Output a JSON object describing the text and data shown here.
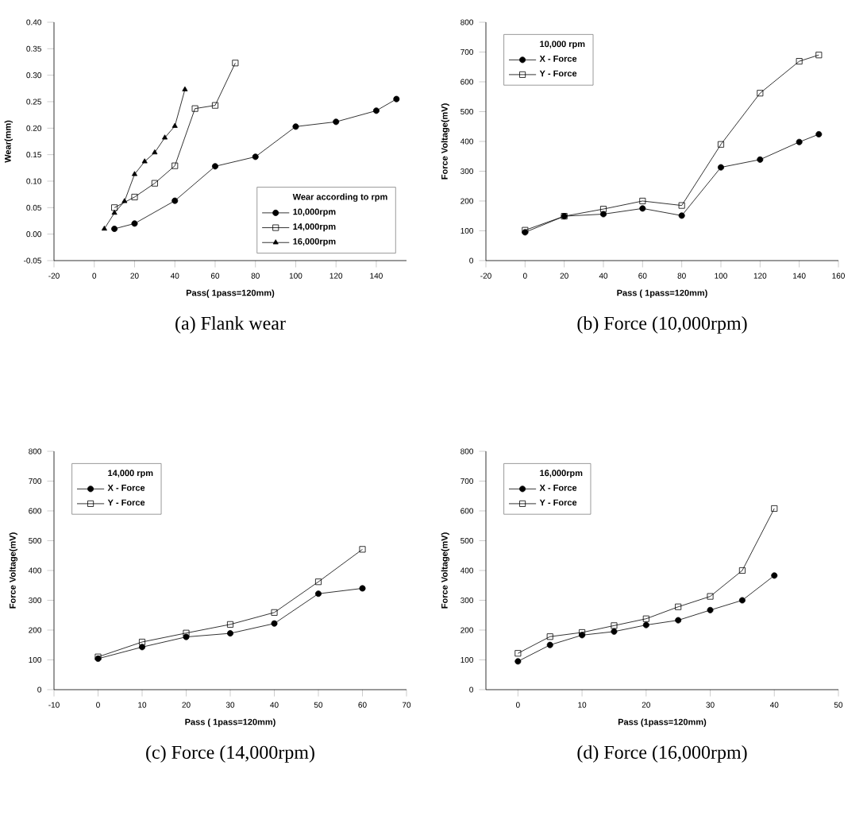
{
  "chart_data": [
    {
      "type": "line",
      "title": "(a) Flank wear",
      "xlabel": "Pass( 1pass=120mm)",
      "ylabel": "Wear(mm)",
      "legend_title": "Wear according to rpm",
      "legend": "bottom right",
      "xlim": [
        -20,
        155
      ],
      "ylim": [
        -0.05,
        0.4
      ],
      "xticks": [
        -20,
        0,
        20,
        40,
        60,
        80,
        100,
        120,
        140
      ],
      "yticks": [
        {
          "value": -0.05,
          "label": "-0.05"
        },
        {
          "value": 0,
          "label": "0.00"
        },
        {
          "value": 0.05,
          "label": "0.05"
        },
        {
          "value": 0.1,
          "label": "0.10"
        },
        {
          "value": 0.15,
          "label": "0.15"
        },
        {
          "value": 0.2,
          "label": "0.20"
        },
        {
          "value": 0.25,
          "label": "0.25"
        },
        {
          "value": 0.3,
          "label": "0.30"
        },
        {
          "value": 0.35,
          "label": "0.35"
        },
        {
          "value": 0.4,
          "label": "0.40"
        }
      ],
      "series": [
        {
          "name": "10,000rpm",
          "color": "#000000",
          "marker": "circle",
          "x": [
            10,
            20,
            40,
            60,
            80,
            100,
            120,
            140,
            150
          ],
          "values": [
            0.01,
            0.02,
            0.063,
            0.128,
            0.146,
            0.203,
            0.212,
            0.233,
            0.255
          ]
        },
        {
          "name": "14,000rpm",
          "color": "#000000",
          "marker": "square",
          "x": [
            10,
            20,
            30,
            40,
            50,
            60,
            70
          ],
          "values": [
            0.05,
            0.07,
            0.096,
            0.129,
            0.237,
            0.243,
            0.323
          ]
        },
        {
          "name": "16,000rpm",
          "color": "#000000",
          "marker": "triangle",
          "x": [
            5,
            10,
            15,
            20,
            25,
            30,
            35,
            40,
            45
          ],
          "values": [
            0.01,
            0.04,
            0.062,
            0.113,
            0.137,
            0.154,
            0.182,
            0.204,
            0.273
          ]
        }
      ]
    },
    {
      "type": "line",
      "title": "(b) Force (10,000rpm)",
      "xlabel": "Pass ( 1pass=120mm)",
      "ylabel": "Force Voltage(mV)",
      "legend_title": "10,000 rpm",
      "legend": "top left",
      "xlim": [
        -20,
        160
      ],
      "ylim": [
        0,
        800
      ],
      "xticks": [
        -20,
        0,
        20,
        40,
        60,
        80,
        100,
        120,
        140,
        160
      ],
      "yticks": [
        0,
        100,
        200,
        300,
        400,
        500,
        600,
        700,
        800
      ],
      "series": [
        {
          "name": "X - Force",
          "color": "#000000",
          "marker": "circle",
          "x": [
            0,
            20,
            40,
            60,
            80,
            100,
            120,
            140,
            150
          ],
          "values": [
            95,
            149,
            156,
            175,
            151,
            313,
            339,
            398,
            424
          ]
        },
        {
          "name": "Y - Force",
          "color": "#000000",
          "marker": "square",
          "x": [
            0,
            20,
            40,
            60,
            80,
            100,
            120,
            140,
            150
          ],
          "values": [
            102,
            149,
            173,
            200,
            185,
            390,
            562,
            669,
            690
          ]
        }
      ]
    },
    {
      "type": "line",
      "title": "(c) Force (14,000rpm)",
      "xlabel": "Pass ( 1pass=120mm)",
      "ylabel": "Force Voltage(mV)",
      "legend_title": "14,000 rpm",
      "legend": "top left",
      "xlim": [
        -10,
        70
      ],
      "ylim": [
        0,
        800
      ],
      "xticks": [
        -10,
        0,
        10,
        20,
        30,
        40,
        50,
        60,
        70
      ],
      "yticks": [
        0,
        100,
        200,
        300,
        400,
        500,
        600,
        700,
        800
      ],
      "series": [
        {
          "name": "X - Force",
          "color": "#000000",
          "marker": "circle",
          "x": [
            0,
            10,
            20,
            30,
            40,
            50,
            60
          ],
          "values": [
            104,
            143,
            177,
            189,
            222,
            322,
            340
          ]
        },
        {
          "name": "Y - Force",
          "color": "#000000",
          "marker": "square",
          "x": [
            0,
            10,
            20,
            30,
            40,
            50,
            60
          ],
          "values": [
            110,
            160,
            190,
            219,
            259,
            362,
            471
          ]
        }
      ]
    },
    {
      "type": "line",
      "title": "(d) Force (16,000rpm)",
      "xlabel": "Pass (1pass=120mm)",
      "ylabel": "Force Voltage(mV)",
      "legend_title": "16,000rpm",
      "legend": "top left",
      "xlim": [
        -5,
        50
      ],
      "ylim": [
        0,
        800
      ],
      "xticks": [
        0,
        10,
        20,
        30,
        40,
        50
      ],
      "yticks": [
        0,
        100,
        200,
        300,
        400,
        500,
        600,
        700,
        800
      ],
      "series": [
        {
          "name": "X - Force",
          "color": "#000000",
          "marker": "circle",
          "x": [
            0,
            5,
            10,
            15,
            20,
            25,
            30,
            35,
            40
          ],
          "values": [
            95,
            150,
            183,
            195,
            217,
            233,
            267,
            300,
            383
          ]
        },
        {
          "name": "Y - Force",
          "color": "#000000",
          "marker": "square",
          "x": [
            0,
            5,
            10,
            15,
            20,
            25,
            30,
            35,
            40
          ],
          "values": [
            122,
            178,
            192,
            215,
            238,
            278,
            313,
            400,
            608
          ]
        }
      ]
    }
  ]
}
